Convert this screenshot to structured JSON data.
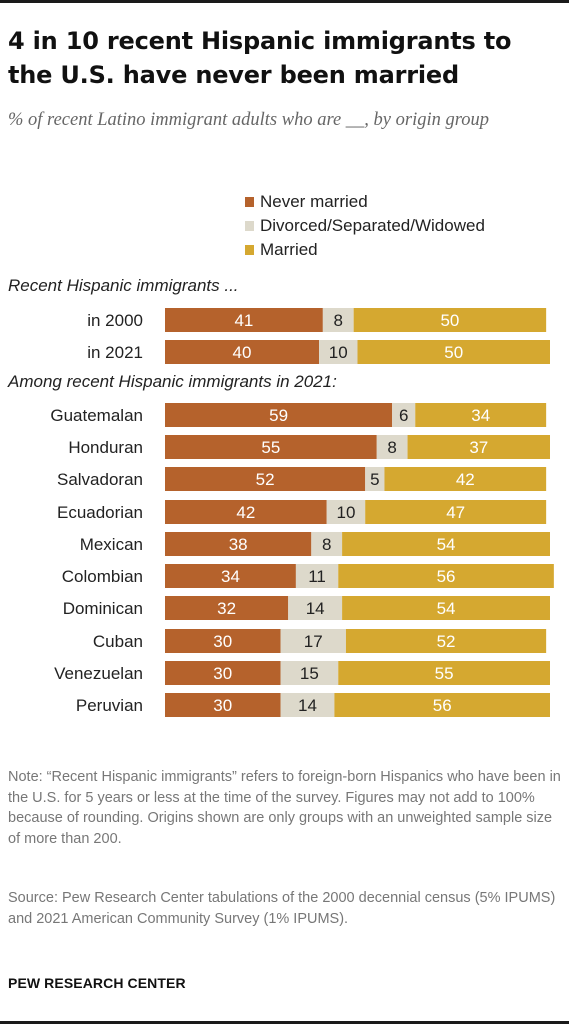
{
  "title": "4 in 10 recent Hispanic immigrants to the U.S. have never been married",
  "subtitle": "% of recent Latino immigrant adults who are __, by origin group",
  "legend": [
    {
      "label": "Never married",
      "color": "#b5622c"
    },
    {
      "label": "Divorced/Separated/Widowed",
      "color": "#ddd9cb"
    },
    {
      "label": "Married",
      "color": "#d5a830"
    }
  ],
  "sections": [
    {
      "label": "Recent Hispanic immigrants ..."
    },
    {
      "label": "Among recent Hispanic immigrants in 2021:"
    }
  ],
  "chart_data": {
    "type": "bar",
    "orientation": "horizontal",
    "stacked": true,
    "xlim": [
      0,
      100
    ],
    "categories": [
      "in 2000",
      "in 2021",
      "Guatemalan",
      "Honduran",
      "Salvadoran",
      "Ecuadorian",
      "Mexican",
      "Colombian",
      "Dominican",
      "Cuban",
      "Venezuelan",
      "Peruvian"
    ],
    "series": [
      {
        "name": "Never married",
        "values": [
          41,
          40,
          59,
          55,
          52,
          42,
          38,
          34,
          32,
          30,
          30,
          30
        ]
      },
      {
        "name": "Divorced/Separated/Widowed",
        "values": [
          8,
          10,
          6,
          8,
          5,
          10,
          8,
          11,
          14,
          17,
          15,
          14
        ]
      },
      {
        "name": "Married",
        "values": [
          50,
          50,
          34,
          37,
          42,
          47,
          54,
          56,
          54,
          52,
          55,
          56
        ]
      }
    ]
  },
  "note": "Note: “Recent Hispanic immigrants” refers to foreign-born Hispanics who have been in the U.S. for 5 years or less at the time of the survey. Figures may not add to 100% because of rounding. Origins shown are only groups with an unweighted sample size of more than 200.",
  "source": "Source: Pew Research Center tabulations of the 2000 decennial census (5% IPUMS) and 2021 American Community Survey (1% IPUMS).",
  "brand": "PEW RESEARCH CENTER"
}
